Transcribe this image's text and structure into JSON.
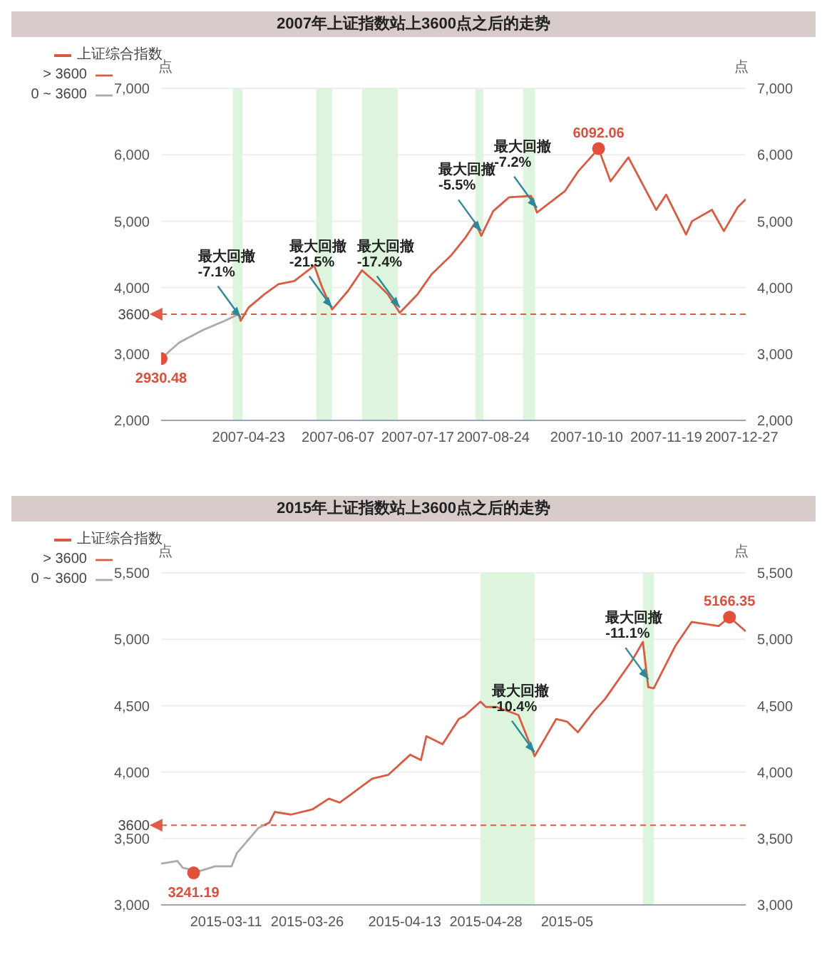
{
  "chart_data": [
    {
      "type": "line",
      "title": "2007年上证指数站上3600点之后的走势",
      "legend_title": "上证综合指数",
      "ylabel": "点",
      "y2label": "点",
      "legend": "top left",
      "grid": "y",
      "xlim": [
        "2007-03-10",
        "2007-12-29"
      ],
      "xticks": [
        "2007-04-23",
        "2007-06-07",
        "2007-07-17",
        "2007-08-24",
        "2007-10-10",
        "2007-11-19",
        "2007-12-27"
      ],
      "ylim": [
        2000,
        7000
      ],
      "yticks": [
        {
          "value": 2000,
          "label": "2,000"
        },
        {
          "value": 3000,
          "label": "3,000"
        },
        {
          "value": 4000,
          "label": "4,000"
        },
        {
          "value": 5000,
          "label": "5,000"
        },
        {
          "value": 6000,
          "label": "6,000"
        },
        {
          "value": 7000,
          "label": "7,000"
        }
      ],
      "y2lim": [
        2000,
        7000
      ],
      "y2ticks": [
        {
          "value": 2000,
          "label": "2,000"
        },
        {
          "value": 3000,
          "label": "3,000"
        },
        {
          "value": 4000,
          "label": "4,000"
        },
        {
          "value": 5000,
          "label": "5,000"
        },
        {
          "value": 6000,
          "label": "6,000"
        },
        {
          "value": 7000,
          "label": "7,000"
        }
      ],
      "series": [
        {
          "name": "> 3600",
          "color": "#d95b43",
          "x": [
            "2007-04-18",
            "2007-04-19",
            "2007-04-23",
            "2007-05-01",
            "2007-05-08",
            "2007-05-16",
            "2007-05-26",
            "2007-05-30",
            "2007-06-04",
            "2007-06-12",
            "2007-06-19",
            "2007-06-27",
            "2007-07-02",
            "2007-07-08",
            "2007-07-17",
            "2007-07-24",
            "2007-08-03",
            "2007-08-10",
            "2007-08-15",
            "2007-08-18",
            "2007-08-24",
            "2007-09-01",
            "2007-09-12",
            "2007-09-15",
            "2007-09-29",
            "2007-10-06",
            "2007-10-16",
            "2007-10-22",
            "2007-10-31",
            "2007-11-14",
            "2007-11-19",
            "2007-11-29",
            "2007-12-02",
            "2007-12-12",
            "2007-12-18",
            "2007-12-25",
            "2007-12-29"
          ],
          "values": [
            3600,
            3500,
            3700,
            3900,
            4050,
            4100,
            4330,
            4000,
            3670,
            3950,
            4260,
            4050,
            3900,
            3620,
            3900,
            4200,
            4490,
            4750,
            4980,
            4780,
            5150,
            5360,
            5380,
            5130,
            5450,
            5760,
            6092.06,
            5600,
            5960,
            5170,
            5400,
            4800,
            5000,
            5170,
            4850,
            5210,
            5330
          ],
          "value_labels": [
            null,
            null,
            null,
            null,
            null,
            null,
            null,
            null,
            null,
            null,
            null,
            null,
            null,
            null,
            null,
            null,
            null,
            null,
            null,
            null,
            null,
            null,
            null,
            null,
            null,
            null,
            "6092.06",
            null,
            null,
            null,
            null,
            null,
            null,
            null,
            null,
            null,
            null
          ]
        },
        {
          "name": "0 ~ 3600",
          "color": "#b3a6a6",
          "x": [
            "2007-03-10",
            "2007-03-19",
            "2007-03-31",
            "2007-04-11",
            "2007-04-18"
          ],
          "values": [
            2930.48,
            3170,
            3360,
            3500,
            3600
          ],
          "value_labels": [
            "2930.48",
            null,
            null,
            null,
            null
          ]
        }
      ],
      "ref_lines": [
        {
          "axis": "y",
          "value": 3600,
          "label": "3600",
          "color": "#e05a47",
          "line_style": "dashed"
        }
      ],
      "bands": [
        {
          "axis": "x",
          "from": "2007-04-15",
          "to": "2007-04-20",
          "color": "#dcf5dc"
        },
        {
          "axis": "x",
          "from": "2007-05-27",
          "to": "2007-06-04",
          "color": "#dcf5dc"
        },
        {
          "axis": "x",
          "from": "2007-06-19",
          "to": "2007-07-07",
          "color": "#dcf5dc"
        },
        {
          "axis": "x",
          "from": "2007-08-15",
          "to": "2007-08-19",
          "color": "#dcf5dc"
        },
        {
          "axis": "x",
          "from": "2007-09-08",
          "to": "2007-09-14",
          "color": "#dcf5dc"
        }
      ],
      "annotations": [
        {
          "text": "最大回撤\n-7.1%",
          "x": "2007-04-19",
          "y": 3550
        },
        {
          "text": "最大回撤\n-21.5%",
          "x": "2007-06-04",
          "y": 3700
        },
        {
          "text": "最大回撤\n-17.4%",
          "x": "2007-07-08",
          "y": 3700
        },
        {
          "text": "最大回撤\n-5.5%",
          "x": "2007-08-18",
          "y": 4850
        },
        {
          "text": "最大回撤\n-7.2%",
          "x": "2007-09-15",
          "y": 5200
        }
      ]
    },
    {
      "type": "line",
      "title": "2015年上证指数站上3600点之后的走势",
      "legend_title": "上证综合指数",
      "ylabel": "点",
      "y2label": "点",
      "legend": "top left",
      "grid": "y",
      "xlim": [
        "2015-02-27",
        "2015-06-15"
      ],
      "xticks": [
        "2015-03-11",
        "2015-03-26",
        "2015-04-13",
        "2015-04-28",
        {
          "value": "2015-05-13",
          "label": "2015-05"
        }
      ],
      "ylim": [
        3000,
        5500
      ],
      "yticks": [
        {
          "value": 3000,
          "label": "3,000"
        },
        {
          "value": 3500,
          "label": "3,500"
        },
        {
          "value": 4000,
          "label": "4,000"
        },
        {
          "value": 4500,
          "label": "4,500"
        },
        {
          "value": 5000,
          "label": "5,000"
        },
        {
          "value": 5500,
          "label": "5,500"
        }
      ],
      "y2lim": [
        3000,
        5500
      ],
      "y2ticks": [
        {
          "value": 3000,
          "label": "3,000"
        },
        {
          "value": 3500,
          "label": "3,500"
        },
        {
          "value": 4000,
          "label": "4,000"
        },
        {
          "value": 4500,
          "label": "4,500"
        },
        {
          "value": 5000,
          "label": "5,000"
        },
        {
          "value": 5500,
          "label": "5,500"
        }
      ],
      "series": [
        {
          "name": "> 3600",
          "color": "#d95b43",
          "x": [
            "2015-03-18",
            "2015-03-19",
            "2015-03-20",
            "2015-03-23",
            "2015-03-27",
            "2015-03-30",
            "2015-04-01",
            "2015-04-03",
            "2015-04-07",
            "2015-04-10",
            "2015-04-14",
            "2015-04-16",
            "2015-04-17",
            "2015-04-20",
            "2015-04-23",
            "2015-04-24",
            "2015-04-27",
            "2015-04-28",
            "2015-04-30",
            "2015-05-04",
            "2015-05-07",
            "2015-05-11",
            "2015-05-13",
            "2015-05-15",
            "2015-05-18",
            "2015-05-20",
            "2015-05-25",
            "2015-05-27",
            "2015-05-28",
            "2015-05-29",
            "2015-06-01",
            "2015-06-02",
            "2015-06-05",
            "2015-06-10",
            "2015-06-12",
            "2015-06-15"
          ],
          "values": [
            3600,
            3620,
            3700,
            3680,
            3720,
            3800,
            3770,
            3830,
            3950,
            3980,
            4130,
            4090,
            4270,
            4210,
            4400,
            4420,
            4530,
            4490,
            4490,
            4430,
            4120,
            4400,
            4380,
            4300,
            4460,
            4550,
            4840,
            4980,
            4640,
            4630,
            4870,
            4950,
            5130,
            5100,
            5166.35,
            5060
          ],
          "value_labels": [
            null,
            null,
            null,
            null,
            null,
            null,
            null,
            null,
            null,
            null,
            null,
            null,
            null,
            null,
            null,
            null,
            null,
            null,
            null,
            null,
            null,
            null,
            null,
            null,
            null,
            null,
            null,
            null,
            null,
            null,
            null,
            null,
            null,
            null,
            "5166.35",
            null
          ]
        },
        {
          "name": "0 ~ 3600",
          "color": "#b3a6a6",
          "x": [
            "2015-02-27",
            "2015-03-02",
            "2015-03-03",
            "2015-03-04",
            "2015-03-05",
            "2015-03-09",
            "2015-03-12",
            "2015-03-13",
            "2015-03-17",
            "2015-03-18"
          ],
          "values": [
            3310,
            3330,
            3280,
            3270,
            3241.19,
            3290,
            3290,
            3390,
            3580,
            3600
          ],
          "value_labels": [
            null,
            null,
            null,
            null,
            "3241.19",
            null,
            null,
            null,
            null,
            null
          ]
        }
      ],
      "ref_lines": [
        {
          "axis": "y",
          "value": 3600,
          "label": "3600",
          "color": "#e05a47",
          "line_style": "dashed"
        }
      ],
      "bands": [
        {
          "axis": "x",
          "from": "2015-04-27",
          "to": "2015-05-07",
          "color": "#dcf5dc"
        },
        {
          "axis": "x",
          "from": "2015-05-27",
          "to": "2015-05-29",
          "color": "#dcf5dc"
        }
      ],
      "annotations": [
        {
          "text": "最大回撤\n-10.4%",
          "x": "2015-05-07",
          "y": 4150
        },
        {
          "text": "最大回撤\n-11.1%",
          "x": "2015-05-28",
          "y": 4700
        }
      ]
    }
  ]
}
